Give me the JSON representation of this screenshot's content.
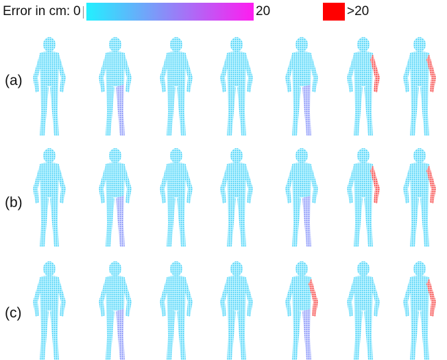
{
  "legend": {
    "title": "Error in cm: ",
    "min": "0",
    "max": "20",
    "over_label": ">20",
    "gradient_start": "#22f0ff",
    "gradient_end": "#ff1cf0",
    "over_color": "#ff0000"
  },
  "rows": [
    {
      "label": "(a)",
      "figures": 7
    },
    {
      "label": "(b)",
      "figures": 7
    },
    {
      "label": "(c)",
      "figures": 7
    }
  ],
  "colors": {
    "body": "#3fd6ff",
    "mid": "#6f8cff",
    "high": "#d63cff",
    "over": "#ff0000"
  }
}
